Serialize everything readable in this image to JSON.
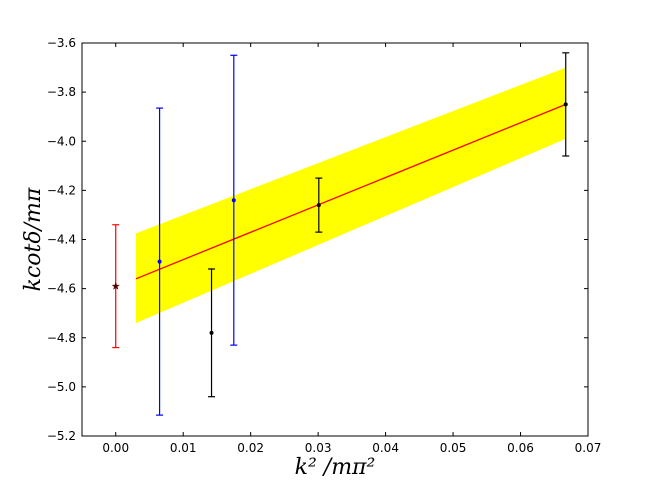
{
  "chart_data": {
    "type": "scatter",
    "xlabel": "k² /mπ²",
    "ylabel": "kcotδ/mπ",
    "xlim": [
      -0.005,
      0.07
    ],
    "ylim": [
      -5.2,
      -3.6
    ],
    "xticks": [
      0.0,
      0.01,
      0.02,
      0.03,
      0.04,
      0.05,
      0.06,
      0.07
    ],
    "xtick_labels": [
      "0.00",
      "0.01",
      "0.02",
      "0.03",
      "0.04",
      "0.05",
      "0.06",
      "0.07"
    ],
    "yticks": [
      -5.2,
      -5.0,
      -4.8,
      -4.6,
      -4.4,
      -4.2,
      -4.0,
      -3.8,
      -3.6
    ],
    "ytick_labels": [
      "−5.2",
      "−5.0",
      "−4.8",
      "−4.6",
      "−4.4",
      "−4.2",
      "−4.0",
      "−3.8",
      "−3.6"
    ],
    "grid": false,
    "series": [
      {
        "color": "#ff0000",
        "marker": "star",
        "points": [
          {
            "x": 0.0,
            "y": -4.59,
            "ylow": -4.84,
            "yhigh": -4.34
          }
        ]
      },
      {
        "color": "#0000ff",
        "marker": "dot",
        "points": [
          {
            "x": 0.0065,
            "y": -4.49,
            "ylow": -5.115,
            "yhigh": -3.865
          },
          {
            "x": 0.0175,
            "y": -4.24,
            "ylow": -4.83,
            "yhigh": -3.65
          }
        ]
      },
      {
        "color": "#000000",
        "marker": "dot",
        "points": [
          {
            "x": 0.0142,
            "y": -4.78,
            "ylow": -5.04,
            "yhigh": -4.52
          },
          {
            "x": 0.0301,
            "y": -4.26,
            "ylow": -4.37,
            "yhigh": -4.15
          },
          {
            "x": 0.0667,
            "y": -3.85,
            "ylow": -4.06,
            "yhigh": -3.64
          }
        ]
      }
    ],
    "fit_line": {
      "color": "#ff0000",
      "x": [
        0.003,
        0.0667
      ],
      "y": [
        -4.56,
        -3.85
      ]
    },
    "fit_band": {
      "color": "#ffff00",
      "x": [
        0.003,
        0.0667
      ],
      "upper": [
        -4.375,
        -3.7
      ],
      "lower": [
        -4.74,
        -3.99
      ]
    }
  }
}
